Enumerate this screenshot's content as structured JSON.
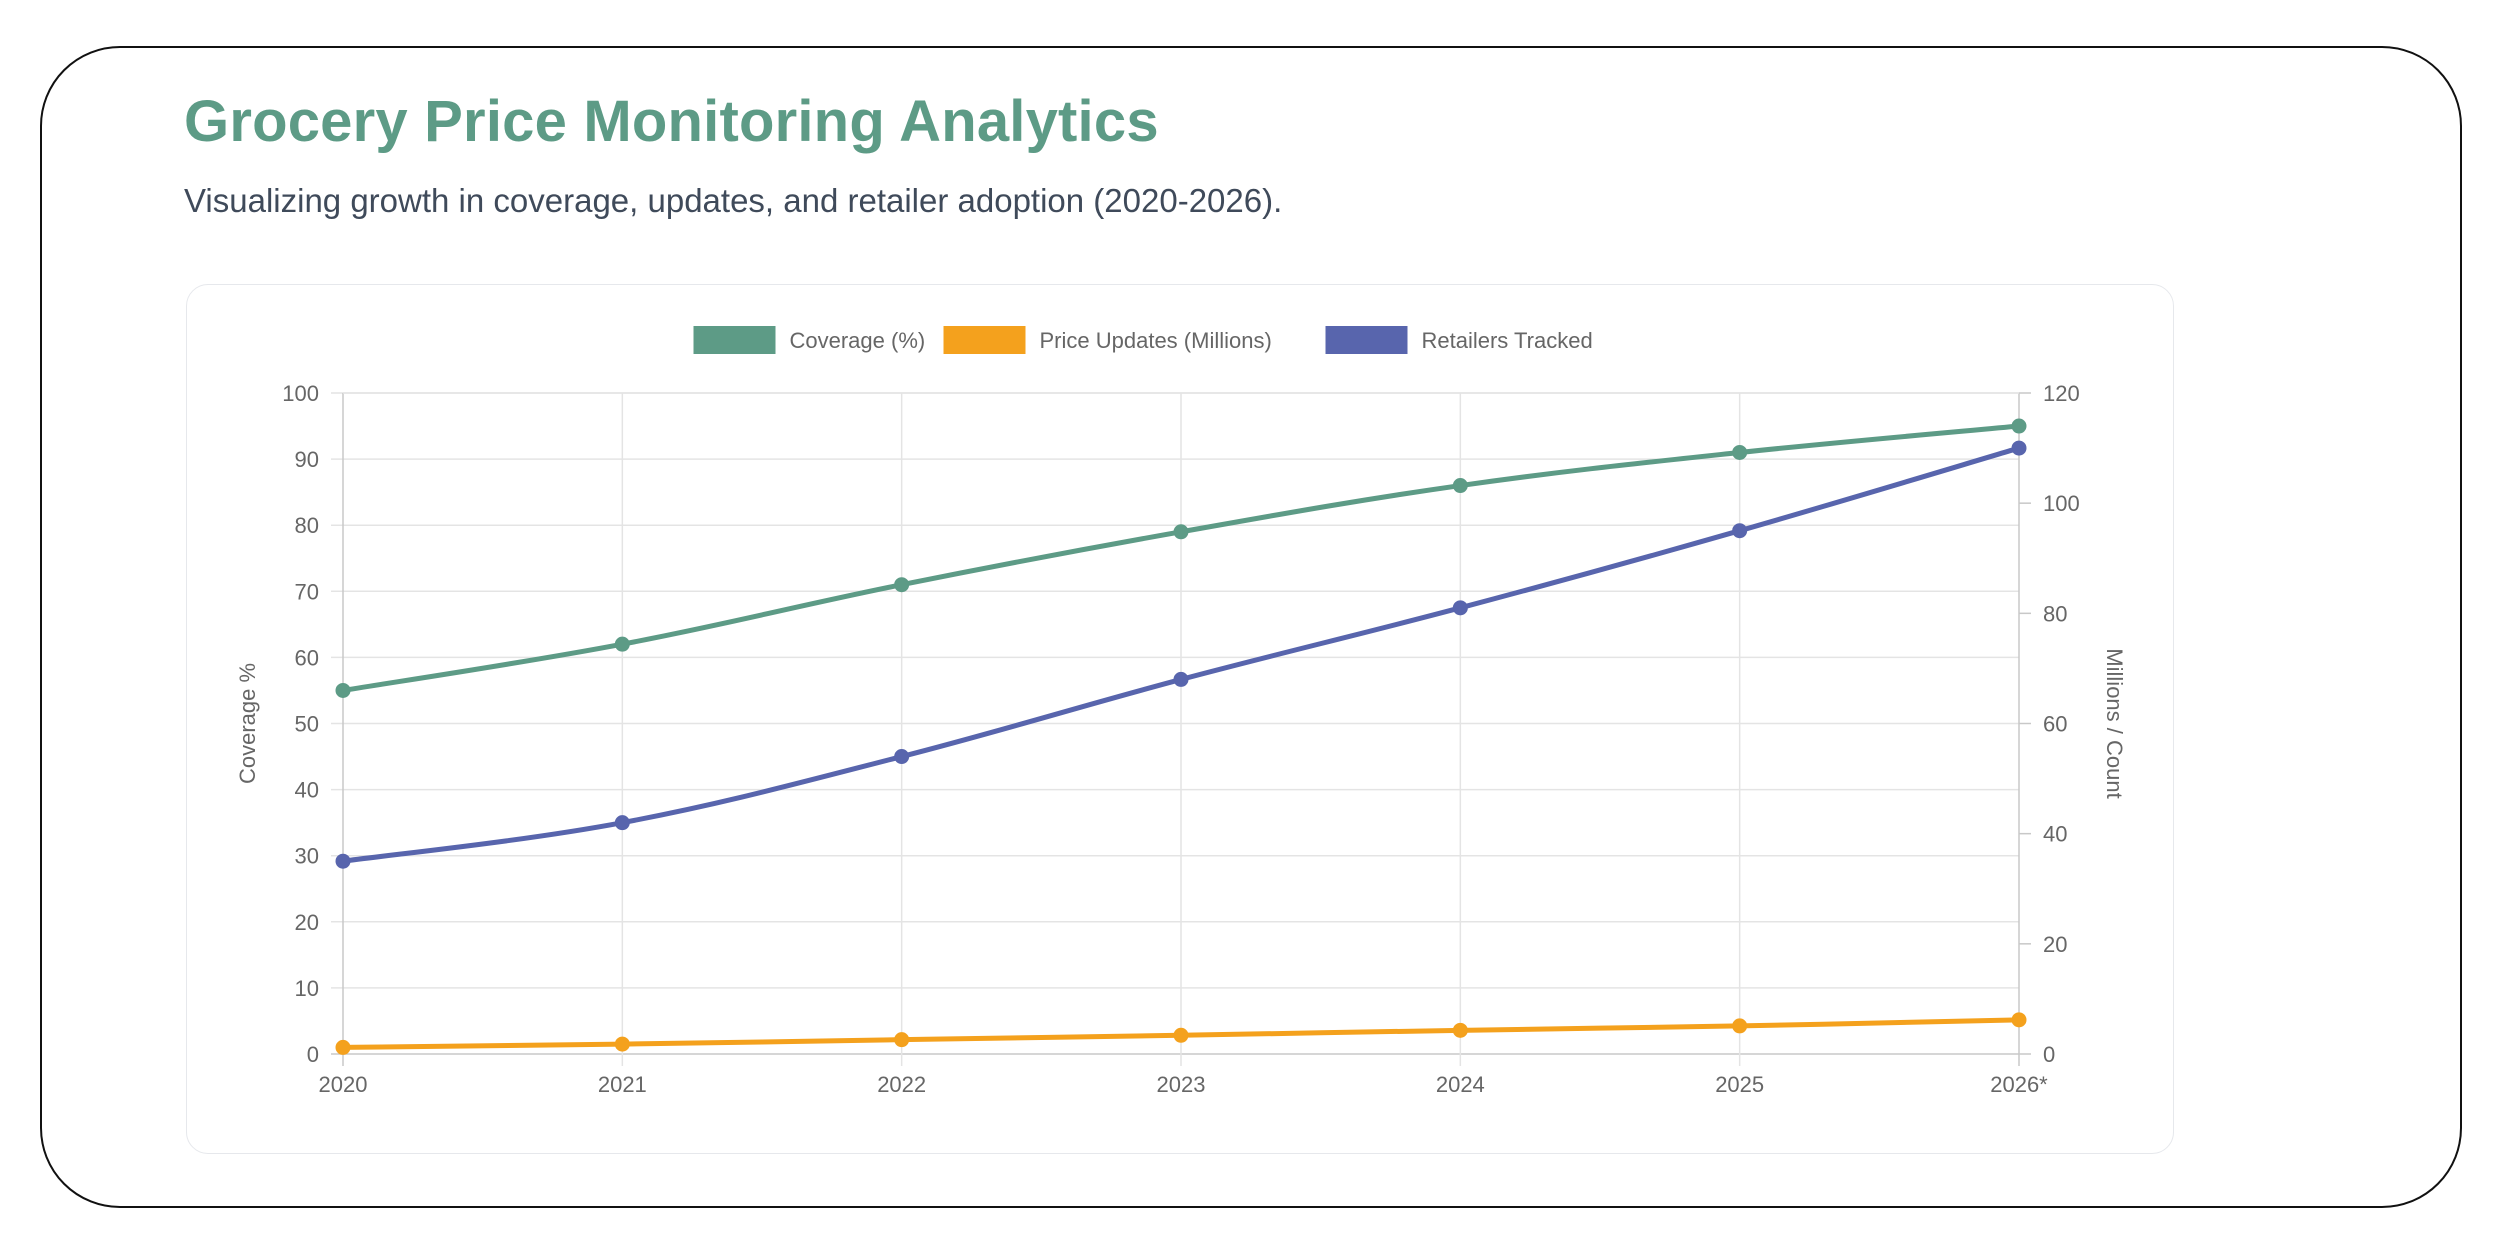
{
  "page": {
    "title": "Grocery Price Monitoring Analytics",
    "subtitle": "Visualizing growth in coverage, updates, and retailer adoption (2020-2026)."
  },
  "chart_data": {
    "type": "line",
    "categories": [
      "2020",
      "2021",
      "2022",
      "2023",
      "2024",
      "2025",
      "2026*"
    ],
    "series": [
      {
        "name": "Coverage (%)",
        "axis": "left",
        "color": "#5d9b86",
        "values": [
          55,
          62,
          71,
          79,
          86,
          91,
          95
        ]
      },
      {
        "name": "Price Updates (Millions)",
        "axis": "right",
        "color": "#f4a11d",
        "values": [
          1.2,
          1.8,
          2.6,
          3.4,
          4.3,
          5.1,
          6.2
        ]
      },
      {
        "name": "Retailers Tracked",
        "axis": "right",
        "color": "#5865ad",
        "values": [
          35,
          42,
          54,
          68,
          81,
          95,
          110
        ]
      }
    ],
    "y_left": {
      "label": "Coverage %",
      "min": 0,
      "max": 100,
      "step": 10
    },
    "y_right": {
      "label": "Millions / Count",
      "min": 0,
      "max": 120,
      "step": 20
    },
    "grid": true,
    "legend": "top-center"
  }
}
